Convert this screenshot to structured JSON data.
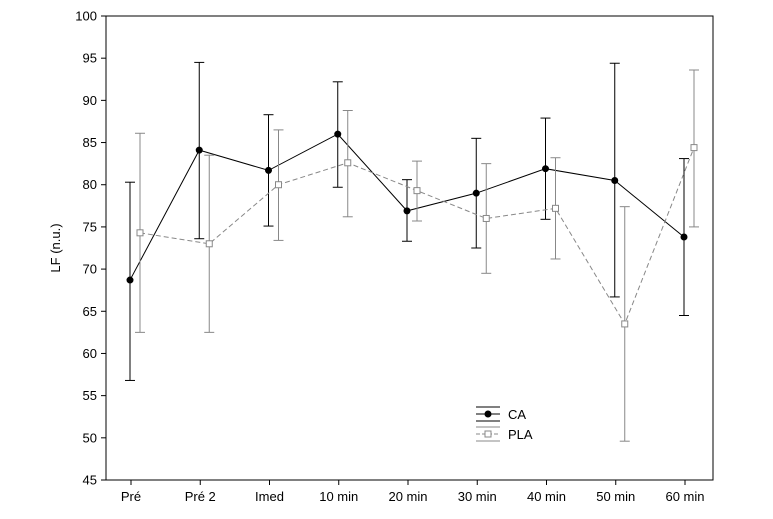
{
  "chart_data": {
    "type": "line",
    "ylabel": "LF (n.u.)",
    "ylim": [
      45,
      100
    ],
    "yticks": [
      45,
      50,
      55,
      60,
      65,
      70,
      75,
      80,
      85,
      90,
      95,
      100
    ],
    "categories": [
      "Pré",
      "Pré 2",
      "Imed",
      "10 min",
      "20 min",
      "30 min",
      "40 min",
      "50 min",
      "60 min"
    ],
    "grid": false,
    "legend_position": "bottom-center",
    "series": [
      {
        "name": "CA",
        "color": "#000000",
        "line_style": "solid",
        "marker": "filled-circle",
        "values": [
          68.7,
          84.1,
          81.7,
          86.0,
          76.9,
          79.0,
          81.9,
          80.5,
          73.8
        ],
        "err_low": [
          56.8,
          73.6,
          75.1,
          79.7,
          73.3,
          72.5,
          75.9,
          66.7,
          64.5
        ],
        "err_high": [
          80.3,
          94.5,
          88.3,
          92.2,
          80.6,
          85.5,
          87.9,
          94.4,
          83.1
        ]
      },
      {
        "name": "PLA",
        "color": "#888888",
        "line_style": "dashed",
        "marker": "hollow-square",
        "values": [
          74.3,
          73.0,
          80.0,
          82.6,
          79.3,
          76.0,
          77.2,
          63.5,
          84.4
        ],
        "err_low": [
          62.5,
          62.5,
          73.4,
          76.2,
          75.7,
          69.5,
          71.2,
          49.6,
          75.0
        ],
        "err_high": [
          86.1,
          83.5,
          86.5,
          88.8,
          82.8,
          82.5,
          83.2,
          77.4,
          93.6
        ]
      }
    ]
  }
}
